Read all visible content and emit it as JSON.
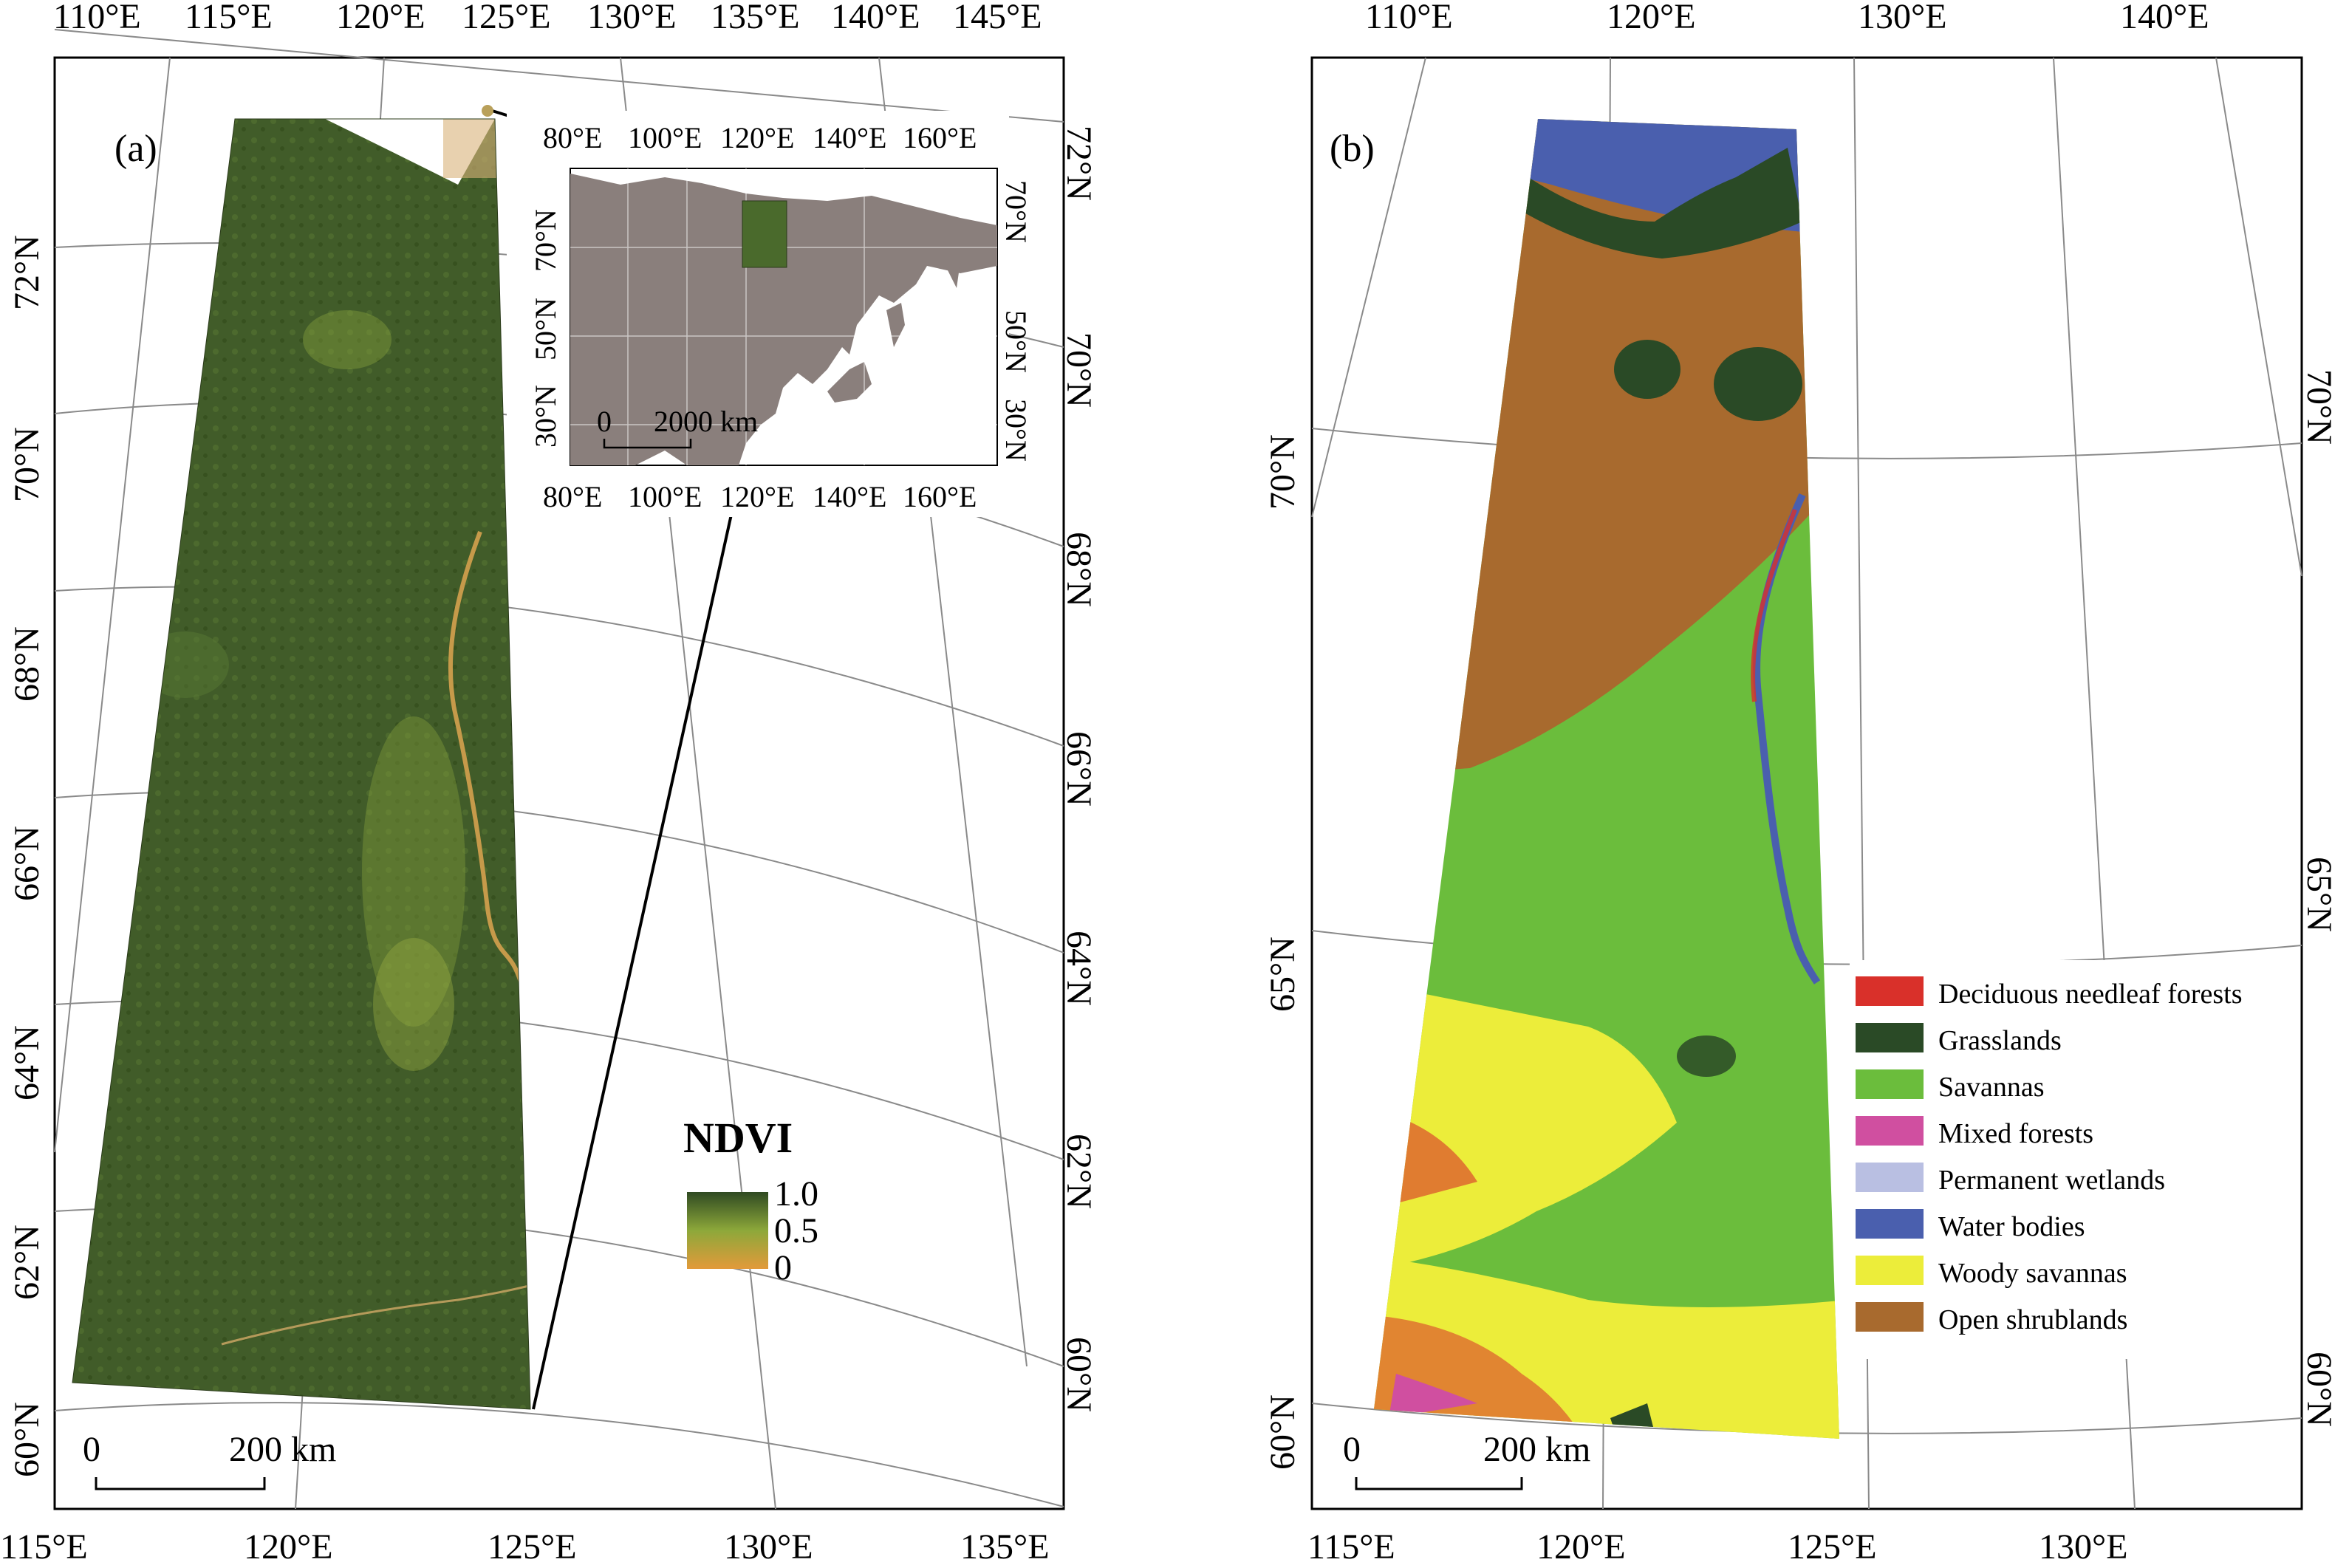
{
  "panel_a": {
    "tag": "(a)",
    "top_lon_labels": [
      "110°E",
      "115°E",
      "120°E",
      "125°E",
      "130°E",
      "135°E",
      "140°E",
      "145°E"
    ],
    "bottom_lon_labels": [
      "115°E",
      "120°E",
      "125°E",
      "130°E",
      "135°E"
    ],
    "left_lat_labels": [
      "72°N",
      "70°N",
      "68°N",
      "66°N",
      "64°N",
      "62°N",
      "60°N"
    ],
    "right_lat_labels": [
      "72°N",
      "70°N",
      "68°N",
      "66°N",
      "64°N",
      "62°N",
      "60°N"
    ],
    "scale": {
      "zero": "0",
      "distance": "200 km"
    },
    "legend": {
      "title": "NDVI",
      "ticks": [
        "1.0",
        "0.5",
        "0"
      ]
    },
    "colors": {
      "vegetation": "#3f5a28",
      "ndvi_high": "#2f4a22",
      "ndvi_mid": "#8da83a",
      "ndvi_low": "#e29a3a"
    }
  },
  "inset": {
    "top_lon_labels": [
      "80°E",
      "100°E",
      "120°E",
      "140°E",
      "160°E"
    ],
    "bottom_lon_labels": [
      "80°E",
      "100°E",
      "120°E",
      "140°E",
      "160°E"
    ],
    "left_lat_labels": [
      "70°N",
      "50°N",
      "30°N"
    ],
    "right_lat_labels": [
      "70°N",
      "50°N",
      "30°N"
    ],
    "scale": {
      "zero": "0",
      "distance": "2000 km"
    },
    "colors": {
      "land": "#8a7f7c"
    }
  },
  "panel_b": {
    "tag": "(b)",
    "top_lon_labels": [
      "110°E",
      "120°E",
      "130°E",
      "140°E"
    ],
    "bottom_lon_labels": [
      "115°E",
      "120°E",
      "125°E",
      "130°E"
    ],
    "left_lat_labels": [
      "70°N",
      "65°N",
      "60°N"
    ],
    "right_lat_labels": [
      "70°N",
      "65°N",
      "60°N"
    ],
    "scale": {
      "zero": "0",
      "distance": "200 km"
    },
    "legend": [
      {
        "label": "Deciduous needleaf forests",
        "color": "#d9302a"
      },
      {
        "label": "Grasslands",
        "color": "#2a4a26"
      },
      {
        "label": "Savannas",
        "color": "#6bbd3c"
      },
      {
        "label": "Mixed forests",
        "color": "#d04fa0"
      },
      {
        "label": "Permanent wetlands",
        "color": "#b9bfe2"
      },
      {
        "label": "Water bodies",
        "color": "#4a5fae"
      },
      {
        "label": "Woody savannas",
        "color": "#eced3a"
      },
      {
        "label": "Open shrublands",
        "color": "#a86a2e"
      }
    ]
  }
}
